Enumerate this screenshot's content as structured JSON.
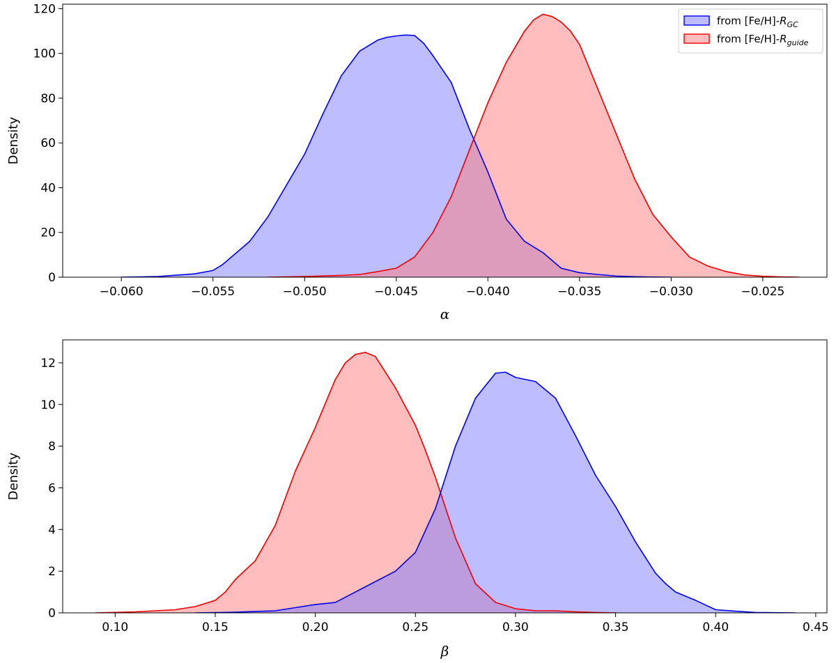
{
  "chart_data": [
    {
      "type": "area",
      "id": "alpha",
      "xlabel": "α",
      "ylabel": "Density",
      "xlim": [
        -0.0632,
        -0.0215
      ],
      "ylim": [
        0,
        122
      ],
      "xticks": [
        -0.06,
        -0.055,
        -0.05,
        -0.045,
        -0.04,
        -0.035,
        -0.03,
        -0.025
      ],
      "xtick_labels": [
        "−0.060",
        "−0.055",
        "−0.050",
        "−0.045",
        "−0.040",
        "−0.035",
        "−0.030",
        "−0.025"
      ],
      "yticks": [
        0,
        20,
        40,
        60,
        80,
        100,
        120
      ],
      "ytick_labels": [
        "0",
        "20",
        "40",
        "60",
        "80",
        "100",
        "120"
      ],
      "legend": {
        "position": "top-right",
        "entries": [
          {
            "text": "from [Fe/H]-",
            "italic": "R",
            "sub": "GC",
            "series": "blue"
          },
          {
            "text": "from [Fe/H]-",
            "italic": "R",
            "sub": "guide",
            "series": "red"
          }
        ]
      },
      "series": [
        {
          "id": "blue",
          "stroke": "#0000ee",
          "fill": "#bdbdfd",
          "x": [
            -0.06,
            -0.058,
            -0.056,
            -0.055,
            -0.0545,
            -0.054,
            -0.053,
            -0.052,
            -0.051,
            -0.05,
            -0.049,
            -0.048,
            -0.047,
            -0.046,
            -0.0455,
            -0.045,
            -0.0445,
            -0.044,
            -0.0435,
            -0.043,
            -0.042,
            -0.041,
            -0.04,
            -0.039,
            -0.038,
            -0.037,
            -0.036,
            -0.035,
            -0.034,
            -0.033,
            -0.032,
            -0.031,
            -0.03
          ],
          "y": [
            0,
            0.3,
            1.5,
            3,
            5.5,
            9,
            16,
            27,
            41,
            55,
            73,
            90,
            101,
            106,
            107.2,
            107.8,
            108.2,
            108,
            104.5,
            99,
            87,
            66,
            47,
            26,
            16,
            11,
            4,
            2,
            1.2,
            0.5,
            0.2,
            0.05,
            0
          ]
        },
        {
          "id": "red",
          "stroke": "#ee0000",
          "fill": "#fdbdbd",
          "x": [
            -0.052,
            -0.05,
            -0.048,
            -0.047,
            -0.046,
            -0.045,
            -0.044,
            -0.043,
            -0.042,
            -0.041,
            -0.04,
            -0.039,
            -0.038,
            -0.0375,
            -0.037,
            -0.0365,
            -0.036,
            -0.0355,
            -0.035,
            -0.034,
            -0.033,
            -0.032,
            -0.031,
            -0.03,
            -0.029,
            -0.028,
            -0.027,
            -0.026,
            -0.025,
            -0.024,
            -0.023
          ],
          "y": [
            0,
            0.3,
            0.8,
            1.2,
            2.5,
            4,
            9,
            20,
            36,
            57,
            78,
            96,
            110,
            115,
            117.5,
            116.5,
            114,
            110,
            104,
            84,
            64,
            44,
            28,
            18,
            9,
            5,
            2.5,
            1,
            0.4,
            0.15,
            0
          ]
        }
      ]
    },
    {
      "type": "area",
      "id": "beta",
      "xlabel": "β",
      "ylabel": "Density",
      "xlim": [
        0.0738,
        0.4556
      ],
      "ylim": [
        0,
        13.1
      ],
      "xticks": [
        0.1,
        0.15,
        0.2,
        0.25,
        0.3,
        0.35,
        0.4,
        0.45
      ],
      "xtick_labels": [
        "0.10",
        "0.15",
        "0.20",
        "0.25",
        "0.30",
        "0.35",
        "0.40",
        "0.45"
      ],
      "yticks": [
        0,
        2,
        4,
        6,
        8,
        10,
        12
      ],
      "ytick_labels": [
        "0",
        "2",
        "4",
        "6",
        "8",
        "10",
        "12"
      ],
      "series": [
        {
          "id": "red",
          "stroke": "#ee0000",
          "fill": "#fdbdbd",
          "x": [
            0.09,
            0.11,
            0.12,
            0.13,
            0.14,
            0.15,
            0.155,
            0.16,
            0.17,
            0.18,
            0.19,
            0.2,
            0.21,
            0.215,
            0.22,
            0.225,
            0.23,
            0.24,
            0.25,
            0.255,
            0.26,
            0.27,
            0.28,
            0.29,
            0.3,
            0.31,
            0.32,
            0.33,
            0.34,
            0.35
          ],
          "y": [
            0,
            0.05,
            0.1,
            0.15,
            0.3,
            0.6,
            1.0,
            1.6,
            2.5,
            4.2,
            6.8,
            8.9,
            11.2,
            12,
            12.4,
            12.5,
            12.3,
            10.8,
            9.0,
            7.8,
            6.5,
            3.6,
            1.4,
            0.5,
            0.2,
            0.1,
            0.1,
            0.05,
            0.02,
            0
          ]
        },
        {
          "id": "blue",
          "stroke": "#0000ee",
          "fill": "#bdbdfd",
          "x": [
            0.14,
            0.16,
            0.18,
            0.19,
            0.2,
            0.21,
            0.22,
            0.23,
            0.24,
            0.25,
            0.26,
            0.27,
            0.28,
            0.29,
            0.295,
            0.3,
            0.305,
            0.31,
            0.32,
            0.33,
            0.34,
            0.35,
            0.36,
            0.37,
            0.375,
            0.38,
            0.39,
            0.4,
            0.41,
            0.42,
            0.44
          ],
          "y": [
            0,
            0.03,
            0.1,
            0.25,
            0.4,
            0.5,
            1.0,
            1.5,
            2.0,
            2.9,
            5.0,
            8.0,
            10.3,
            11.5,
            11.55,
            11.3,
            11.2,
            11.1,
            10.3,
            8.5,
            6.6,
            5.1,
            3.4,
            1.9,
            1.4,
            1.0,
            0.6,
            0.15,
            0.08,
            0.02,
            0
          ]
        }
      ]
    }
  ]
}
